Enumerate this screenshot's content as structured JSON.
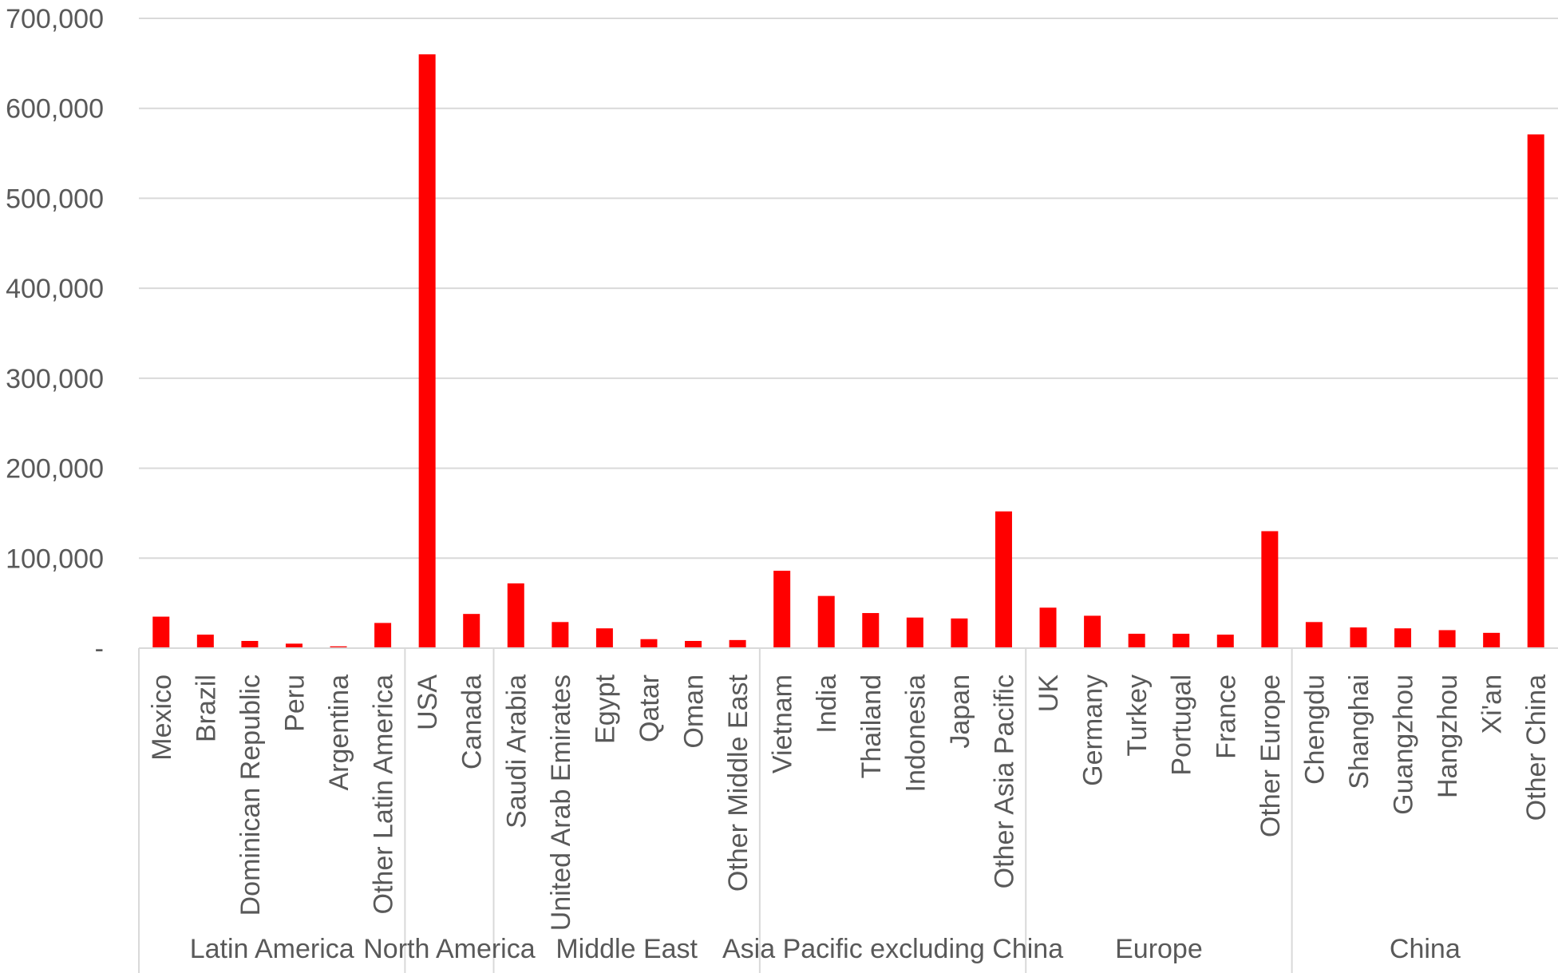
{
  "chart_data": {
    "type": "bar",
    "title": "",
    "xlabel": "",
    "ylabel": "",
    "ylim": [
      0,
      700000
    ],
    "yticks": [
      {
        "value": 0,
        "label": "-"
      },
      {
        "value": 100000,
        "label": "100,000"
      },
      {
        "value": 200000,
        "label": "200,000"
      },
      {
        "value": 300000,
        "label": "300,000"
      },
      {
        "value": 400000,
        "label": "400,000"
      },
      {
        "value": 500000,
        "label": "500,000"
      },
      {
        "value": 600000,
        "label": "600,000"
      },
      {
        "value": 700000,
        "label": "700,000"
      }
    ],
    "grid": true,
    "legend": "none",
    "bar_color": "#ff0000",
    "groups": [
      {
        "name": "Latin America",
        "categories": [
          "Mexico",
          "Brazil",
          "Dominican Republic",
          "Peru",
          "Argentina",
          "Other Latin America"
        ],
        "values": [
          35000,
          15000,
          8000,
          5000,
          2000,
          28000
        ]
      },
      {
        "name": "North America",
        "categories": [
          "USA",
          "Canada"
        ],
        "values": [
          660000,
          38000
        ]
      },
      {
        "name": "Middle East",
        "categories": [
          "Saudi Arabia",
          "United Arab Emirates",
          "Egypt",
          "Qatar",
          "Oman",
          "Other Middle East"
        ],
        "values": [
          72000,
          29000,
          22000,
          10000,
          8000,
          9000
        ]
      },
      {
        "name": "Asia Pacific excluding China",
        "categories": [
          "Vietnam",
          "India",
          "Thailand",
          "Indonesia",
          "Japan",
          "Other Asia Pacific"
        ],
        "values": [
          86000,
          58000,
          39000,
          34000,
          33000,
          152000
        ]
      },
      {
        "name": "Europe",
        "categories": [
          "UK",
          "Germany",
          "Turkey",
          "Portugal",
          "France",
          "Other Europe"
        ],
        "values": [
          45000,
          36000,
          16000,
          16000,
          15000,
          130000
        ]
      },
      {
        "name": "China",
        "categories": [
          "Chengdu",
          "Shanghai",
          "Guangzhou",
          "Hangzhou",
          "Xi'an",
          "Other China"
        ],
        "values": [
          29000,
          23000,
          22000,
          20000,
          17000,
          571000
        ]
      }
    ]
  }
}
